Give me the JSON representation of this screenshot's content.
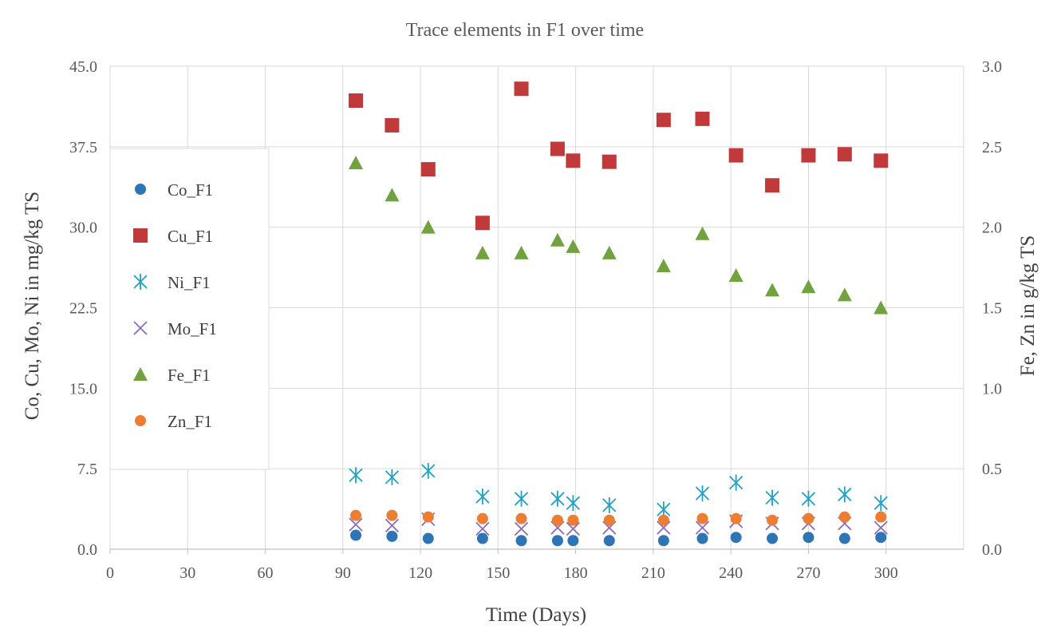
{
  "chart_data": {
    "type": "scatter",
    "title": "Trace elements in F1 over time",
    "xlabel": "Time (Days)",
    "ylabel": "Co, Cu, Mo, Ni in mg/kg TS",
    "y2label": "Fe, Zn in g/kg TS",
    "xlim": [
      0,
      330
    ],
    "ylim": [
      0,
      45
    ],
    "y2lim": [
      0,
      3
    ],
    "x_ticks": [
      0,
      30,
      60,
      90,
      120,
      150,
      180,
      210,
      240,
      270,
      300
    ],
    "x_tick_labels": [
      "0",
      "30",
      "60",
      "90",
      "120",
      "150",
      "180",
      "210",
      "240",
      "270",
      "300"
    ],
    "y_ticks": [
      0,
      7.5,
      15,
      22.5,
      30,
      37.5,
      45
    ],
    "y_tick_labels": [
      "0.0",
      "7.5",
      "15.0",
      "22.5",
      "30.0",
      "37.5",
      "45.0"
    ],
    "y2_ticks": [
      0,
      0.5,
      1,
      1.5,
      2,
      2.5,
      3
    ],
    "y2_tick_labels": [
      "0.0",
      "0.5",
      "1.0",
      "1.5",
      "2.0",
      "2.5",
      "3.0"
    ],
    "legend_position": "left",
    "x": [
      95,
      109,
      123,
      144,
      159,
      173,
      179,
      193,
      214,
      229,
      242,
      256,
      270,
      284,
      298
    ],
    "series": [
      {
        "name": "Co_F1",
        "axis": "left",
        "marker": "circle",
        "color": "#2e75b6",
        "values": [
          1.3,
          1.2,
          1.0,
          1.0,
          0.8,
          0.8,
          0.8,
          0.8,
          0.8,
          1.0,
          1.1,
          1.0,
          1.1,
          1.0,
          1.1
        ]
      },
      {
        "name": "Cu_F1",
        "axis": "left",
        "marker": "square",
        "color": "#c0393b",
        "values": [
          41.8,
          39.5,
          35.4,
          30.4,
          42.9,
          37.3,
          36.2,
          36.1,
          40.0,
          40.1,
          36.7,
          33.9,
          36.7,
          36.8,
          36.2
        ]
      },
      {
        "name": "Ni_F1",
        "axis": "left",
        "marker": "asterisk",
        "color": "#1fa2c4",
        "values": [
          6.9,
          6.7,
          7.3,
          4.9,
          4.7,
          4.7,
          4.3,
          4.1,
          3.7,
          5.2,
          6.2,
          4.8,
          4.7,
          5.1,
          4.3
        ]
      },
      {
        "name": "Mo_F1",
        "axis": "left",
        "marker": "x",
        "color": "#8a6bbd",
        "values": [
          2.3,
          2.2,
          2.8,
          1.9,
          1.9,
          2.0,
          1.9,
          2.0,
          2.0,
          2.0,
          2.6,
          2.4,
          2.4,
          2.4,
          2.0
        ]
      },
      {
        "name": "Fe_F1",
        "axis": "right",
        "marker": "triangle",
        "color": "#70a23f",
        "values": [
          2.4,
          2.2,
          2.0,
          1.84,
          1.84,
          1.92,
          1.88,
          1.84,
          1.76,
          1.96,
          1.7,
          1.61,
          1.63,
          1.58,
          1.5
        ]
      },
      {
        "name": "Zn_F1",
        "axis": "right",
        "marker": "circle",
        "color": "#ed7d31",
        "values": [
          0.21,
          0.21,
          0.2,
          0.19,
          0.19,
          0.18,
          0.18,
          0.18,
          0.18,
          0.19,
          0.19,
          0.18,
          0.19,
          0.2,
          0.2
        ]
      }
    ]
  }
}
